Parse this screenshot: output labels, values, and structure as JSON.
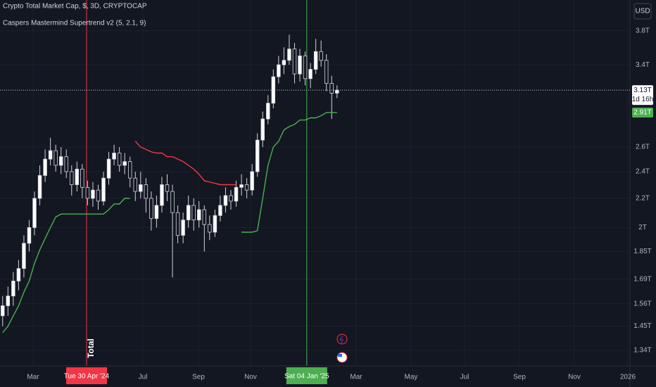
{
  "chart_data": {
    "type": "candlestick",
    "title": "Crypto Total Market Cap, $, 3D, CRYPTOCAP",
    "subtitle": "Caspers Mastermind Supertrend v2 (5, 2.1, 9)",
    "currency": "USD",
    "log_scale": true,
    "grid": true,
    "up_color": "#ffffff",
    "down_color": "#131722",
    "wick_color": "#d1d4dc",
    "xlim": [
      0,
      118.7
    ],
    "xticks": [
      {
        "value": 6.23,
        "label": "Mar"
      },
      {
        "value": 26.92,
        "label": "Jul"
      },
      {
        "value": 37.4,
        "label": "Sep"
      },
      {
        "value": 47.21,
        "label": "Nov"
      },
      {
        "value": 67.11,
        "label": "Mar"
      },
      {
        "value": 77.45,
        "label": "May"
      },
      {
        "value": 87.53,
        "label": "Jul"
      },
      {
        "value": 97.88,
        "label": "Sep"
      },
      {
        "value": 108.22,
        "label": "Nov"
      },
      {
        "value": 118.3,
        "label": "2026"
      }
    ],
    "ylim": [
      1274000000000.0,
      4200000000000.0
    ],
    "yticks": [
      {
        "value": 1340000000000.0,
        "label": "1.34T"
      },
      {
        "value": 1450000000000.0,
        "label": "1.45T"
      },
      {
        "value": 1560000000000.0,
        "label": "1.56T"
      },
      {
        "value": 1690000000000.0,
        "label": "1.69T"
      },
      {
        "value": 1850000000000.0,
        "label": "1.85T"
      },
      {
        "value": 2000000000000.0,
        "label": "2T"
      },
      {
        "value": 2200000000000.0,
        "label": "2.2T"
      },
      {
        "value": 2400000000000.0,
        "label": "2.4T"
      },
      {
        "value": 2600000000000.0,
        "label": "2.6T"
      },
      {
        "value": 3400000000000.0,
        "label": "3.4T"
      },
      {
        "value": 3800000000000.0,
        "label": "3.8T"
      }
    ],
    "open": [
      1500000000000.0,
      1550000000000.0,
      1600000000000.0,
      1680000000000.0,
      1750000000000.0,
      1900000000000.0,
      2000000000000.0,
      2200000000000.0,
      2370000000000.0,
      2500000000000.0,
      2570000000000.0,
      2450000000000.0,
      2520000000000.0,
      2400000000000.0,
      2300000000000.0,
      2420000000000.0,
      2280000000000.0,
      2200000000000.0,
      2260000000000.0,
      2180000000000.0,
      2350000000000.0,
      2500000000000.0,
      2550000000000.0,
      2450000000000.0,
      2480000000000.0,
      2350000000000.0,
      2250000000000.0,
      2300000000000.0,
      2200000000000.0,
      2060000000000.0,
      2150000000000.0,
      2300000000000.0,
      2250000000000.0,
      2100000000000.0,
      1950000000000.0,
      2050000000000.0,
      2150000000000.0,
      2050000000000.0,
      2120000000000.0,
      2020000000000.0,
      1970000000000.0,
      2080000000000.0,
      2150000000000.0,
      2220000000000.0,
      2180000000000.0,
      2280000000000.0,
      2300000000000.0,
      2260000000000.0,
      2400000000000.0,
      2660000000000.0,
      2850000000000.0,
      3000000000000.0,
      3270000000000.0,
      3400000000000.0,
      3450000000000.0,
      3580000000000.0,
      3300000000000.0,
      3500000000000.0,
      3250000000000.0,
      3350000000000.0,
      3550000000000.0,
      3450000000000.0,
      3200000000000.0,
      3100000000000.0
    ],
    "high": [
      1600000000000.0,
      1650000000000.0,
      1730000000000.0,
      1800000000000.0,
      1950000000000.0,
      2050000000000.0,
      2250000000000.0,
      2450000000000.0,
      2580000000000.0,
      2680000000000.0,
      2620000000000.0,
      2600000000000.0,
      2580000000000.0,
      2450000000000.0,
      2480000000000.0,
      2460000000000.0,
      2330000000000.0,
      2320000000000.0,
      2300000000000.0,
      2400000000000.0,
      2560000000000.0,
      2620000000000.0,
      2600000000000.0,
      2550000000000.0,
      2520000000000.0,
      2400000000000.0,
      2400000000000.0,
      2350000000000.0,
      2250000000000.0,
      2220000000000.0,
      2360000000000.0,
      2380000000000.0,
      2300000000000.0,
      2150000000000.0,
      2100000000000.0,
      2220000000000.0,
      2200000000000.0,
      2180000000000.0,
      2150000000000.0,
      2080000000000.0,
      2120000000000.0,
      2220000000000.0,
      2280000000000.0,
      2260000000000.0,
      2330000000000.0,
      2380000000000.0,
      2350000000000.0,
      2460000000000.0,
      2720000000000.0,
      2920000000000.0,
      3080000000000.0,
      3350000000000.0,
      3500000000000.0,
      3600000000000.0,
      3750000000000.0,
      3650000000000.0,
      3580000000000.0,
      3550000000000.0,
      3420000000000.0,
      3700000000000.0,
      3680000000000.0,
      3520000000000.0,
      3280000000000.0,
      3180000000000.0
    ],
    "low": [
      1450000000000.0,
      1500000000000.0,
      1550000000000.0,
      1630000000000.0,
      1700000000000.0,
      1850000000000.0,
      1950000000000.0,
      2150000000000.0,
      2320000000000.0,
      2450000000000.0,
      2400000000000.0,
      2380000000000.0,
      2350000000000.0,
      2220000000000.0,
      2250000000000.0,
      2200000000000.0,
      2150000000000.0,
      2140000000000.0,
      2120000000000.0,
      2150000000000.0,
      2300000000000.0,
      2450000000000.0,
      2400000000000.0,
      2380000000000.0,
      2280000000000.0,
      2180000000000.0,
      2200000000000.0,
      2100000000000.0,
      1980000000000.0,
      2000000000000.0,
      2100000000000.0,
      2180000000000.0,
      1700000000000.0,
      1900000000000.0,
      1900000000000.0,
      2000000000000.0,
      1980000000000.0,
      2000000000000.0,
      1850000000000.0,
      1920000000000.0,
      1940000000000.0,
      2040000000000.0,
      2100000000000.0,
      2120000000000.0,
      2140000000000.0,
      2220000000000.0,
      2200000000000.0,
      2220000000000.0,
      2360000000000.0,
      2600000000000.0,
      2800000000000.0,
      2950000000000.0,
      3200000000000.0,
      3300000000000.0,
      3400000000000.0,
      3200000000000.0,
      3220000000000.0,
      3180000000000.0,
      3150000000000.0,
      3300000000000.0,
      3380000000000.0,
      3120000000000.0,
      2850000000000.0,
      3050000000000.0
    ],
    "close": [
      1550000000000.0,
      1600000000000.0,
      1680000000000.0,
      1750000000000.0,
      1900000000000.0,
      2000000000000.0,
      2200000000000.0,
      2370000000000.0,
      2500000000000.0,
      2570000000000.0,
      2450000000000.0,
      2520000000000.0,
      2400000000000.0,
      2300000000000.0,
      2420000000000.0,
      2280000000000.0,
      2200000000000.0,
      2260000000000.0,
      2180000000000.0,
      2350000000000.0,
      2500000000000.0,
      2550000000000.0,
      2450000000000.0,
      2480000000000.0,
      2350000000000.0,
      2250000000000.0,
      2300000000000.0,
      2200000000000.0,
      2060000000000.0,
      2150000000000.0,
      2300000000000.0,
      2250000000000.0,
      2100000000000.0,
      1950000000000.0,
      2050000000000.0,
      2150000000000.0,
      2050000000000.0,
      2120000000000.0,
      2020000000000.0,
      1970000000000.0,
      2080000000000.0,
      2150000000000.0,
      2220000000000.0,
      2180000000000.0,
      2280000000000.0,
      2300000000000.0,
      2260000000000.0,
      2400000000000.0,
      2660000000000.0,
      2850000000000.0,
      3000000000000.0,
      3270000000000.0,
      3400000000000.0,
      3450000000000.0,
      3580000000000.0,
      3300000000000.0,
      3500000000000.0,
      3250000000000.0,
      3350000000000.0,
      3550000000000.0,
      3450000000000.0,
      3200000000000.0,
      3100000000000.0,
      3130000000000.0
    ],
    "supertrend": [
      {
        "color": "#4caf50",
        "values": [
          1420000000000.0,
          1450000000000.0,
          1500000000000.0,
          1550000000000.0,
          1620000000000.0,
          1680000000000.0,
          1780000000000.0,
          1860000000000.0,
          1930000000000.0,
          2000000000000.0,
          2070000000000.0,
          2090000000000.0,
          2090000000000.0,
          2090000000000.0,
          2090000000000.0,
          2090000000000.0,
          2090000000000.0,
          2090000000000.0,
          2090000000000.0,
          2090000000000.0,
          2120000000000.0,
          2160000000000.0,
          2160000000000.0,
          2200000000000.0,
          2200000000000.0,
          null,
          null,
          null,
          null,
          null,
          null,
          null,
          null,
          null,
          null,
          null,
          null,
          null,
          null,
          null,
          null,
          null,
          null,
          null,
          null,
          1970000000000.0,
          1970000000000.0,
          1970000000000.0,
          1980000000000.0,
          2200000000000.0,
          2450000000000.0,
          2600000000000.0,
          2650000000000.0,
          2750000000000.0,
          2780000000000.0,
          2800000000000.0,
          2840000000000.0,
          2840000000000.0,
          2860000000000.0,
          2860000000000.0,
          2880000000000.0,
          2910000000000.0,
          2910000000000.0,
          2910000000000.0
        ]
      },
      {
        "color": "#f23645",
        "values": [
          null,
          null,
          null,
          null,
          null,
          null,
          null,
          null,
          null,
          null,
          null,
          null,
          null,
          null,
          null,
          null,
          null,
          null,
          null,
          null,
          null,
          null,
          null,
          null,
          null,
          2650000000000.0,
          2600000000000.0,
          2580000000000.0,
          2560000000000.0,
          2550000000000.0,
          2550000000000.0,
          2520000000000.0,
          2520000000000.0,
          2500000000000.0,
          2480000000000.0,
          2450000000000.0,
          2420000000000.0,
          2380000000000.0,
          2330000000000.0,
          2320000000000.0,
          2310000000000.0,
          2300000000000.0,
          2300000000000.0,
          2300000000000.0,
          2300000000000.0,
          null,
          null,
          null,
          null,
          null,
          null,
          null,
          null,
          null,
          null,
          null,
          null,
          null,
          null,
          null,
          null,
          null,
          null,
          null
        ]
      }
    ],
    "last_price": {
      "value": 3130000000000.0,
      "label": "3.13T",
      "countdown": "1d 16h"
    },
    "supertrend_price": {
      "value": 2910000000000.0,
      "label": "2.91T"
    },
    "markers": [
      {
        "x": 16.31,
        "label": "Tue 30 Apr '24",
        "color": "#f23645"
      },
      {
        "x": 57.8,
        "label": "Sat 04 Jan '25",
        "color": "#4caf50"
      }
    ],
    "annotation": "Total"
  }
}
